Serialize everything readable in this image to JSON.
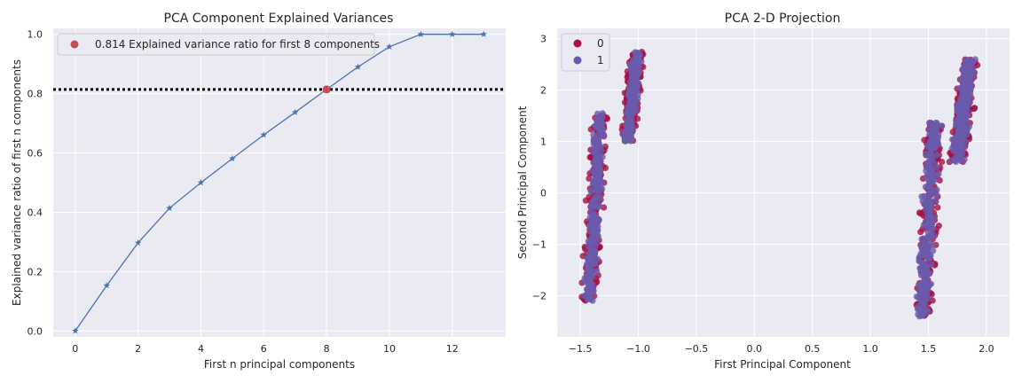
{
  "chart_data": [
    {
      "type": "line",
      "title": "PCA Component Explained Variances",
      "xlabel": "First n principal components",
      "ylabel": "Explained variance ratio of first n components",
      "xlim": [
        -0.7,
        13.7
      ],
      "ylim": [
        -0.02,
        1.02
      ],
      "xticks": [
        "0",
        "2",
        "4",
        "6",
        "8",
        "10",
        "12"
      ],
      "yticks": [
        "0.0",
        "0.2",
        "0.4",
        "0.6",
        "0.8",
        "1.0"
      ],
      "grid": true,
      "series": [
        {
          "x": [
            0,
            1,
            2,
            3,
            4,
            5,
            6,
            7,
            8,
            9,
            10,
            11,
            12,
            13
          ],
          "y": [
            0.0,
            0.153,
            0.297,
            0.414,
            0.5,
            0.581,
            0.661,
            0.737,
            0.814,
            0.89,
            0.958,
            1.0,
            1.0,
            1.0
          ],
          "marker": "star",
          "color": "#4c72b0"
        }
      ],
      "highlight_point": {
        "x": 8,
        "y": 0.814,
        "color": "#c44e52"
      },
      "threshold_line": {
        "y": 0.814,
        "style": "dotted",
        "color": "#000000"
      },
      "legend": {
        "placement": "top-left",
        "entries": [
          "0.814 Explained variance ratio for first 8 components"
        ]
      }
    },
    {
      "type": "scatter",
      "title": "PCA 2-D Projection",
      "xlabel": "First Principal Component",
      "ylabel": "Second Principal Component",
      "xlim": [
        -1.7,
        2.2
      ],
      "ylim": [
        -2.8,
        3.2
      ],
      "xticks": [
        "−1.5",
        "−1.0",
        "−0.5",
        "0.0",
        "0.5",
        "1.0",
        "1.5",
        "2.0"
      ],
      "yticks": [
        "−2",
        "−1",
        "0",
        "1",
        "2",
        "3"
      ],
      "grid": true,
      "legend": {
        "placement": "top-left",
        "entries": [
          "0",
          "1"
        ]
      },
      "series": [
        {
          "name": "0",
          "color": "#a50f45"
        },
        {
          "name": "1",
          "color": "#6a5aab"
        }
      ],
      "clusters": [
        {
          "x_range": [
            -1.55,
            -1.2
          ],
          "y_range": [
            -2.1,
            1.55
          ]
        },
        {
          "x_range": [
            -1.2,
            -0.9
          ],
          "y_range": [
            1.0,
            2.75
          ]
        },
        {
          "x_range": [
            1.3,
            1.7
          ],
          "y_range": [
            -2.4,
            1.4
          ]
        },
        {
          "x_range": [
            1.6,
            2.0
          ],
          "y_range": [
            0.6,
            2.6
          ]
        }
      ]
    }
  ]
}
